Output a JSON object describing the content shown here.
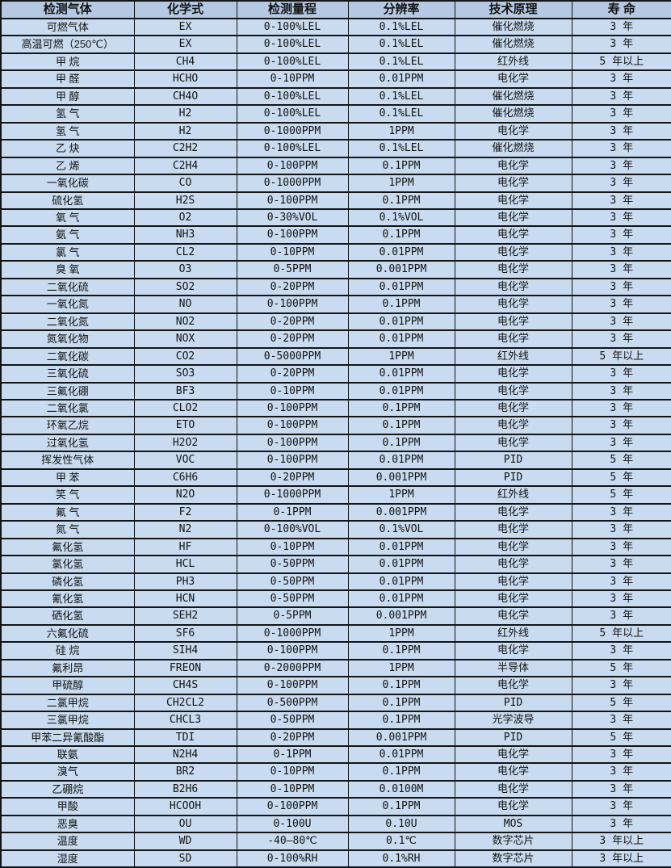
{
  "colors": {
    "header_bg": "#b4c9e3",
    "row_bg": "#c8dbf0",
    "border": "#141414",
    "text": "#131313"
  },
  "table": {
    "headers": [
      "检测气体",
      "化学式",
      "检测量程",
      "分辨率",
      "技术原理",
      "寿 命"
    ],
    "column_keys": [
      "gas",
      "formula",
      "range",
      "resolution",
      "principle",
      "lifespan"
    ],
    "rows": [
      [
        "可燃气体",
        "EX",
        "0-100%LEL",
        "0.1%LEL",
        "催化燃烧",
        "3 年"
      ],
      [
        "高温可燃（250℃）",
        "EX",
        "0-100%LEL",
        "0.1%LEL",
        "催化燃烧",
        "3 年"
      ],
      [
        "甲 烷",
        "CH4",
        "0-100%LEL",
        "0.1%LEL",
        "红外线",
        "5 年以上"
      ],
      [
        "甲 醛",
        "HCHO",
        "0-10PPM",
        "0.01PPM",
        "电化学",
        "3 年"
      ],
      [
        "甲 醇",
        "CH4O",
        "0-100%LEL",
        "0.1%LEL",
        "催化燃烧",
        "3 年"
      ],
      [
        "氢 气",
        "H2",
        "0-100%LEL",
        "0.1%LEL",
        "催化燃烧",
        "3 年"
      ],
      [
        "氢 气",
        "H2",
        "0-1000PPM",
        "1PPM",
        "电化学",
        "3 年"
      ],
      [
        "乙 炔",
        "C2H2",
        "0-100%LEL",
        "0.1%LEL",
        "催化燃烧",
        "3 年"
      ],
      [
        "乙 烯",
        "C2H4",
        "0-100PPM",
        "0.1PPM",
        "电化学",
        "3 年"
      ],
      [
        "一氧化碳",
        "CO",
        "0-1000PPM",
        "1PPM",
        "电化学",
        "3 年"
      ],
      [
        "硫化氢",
        "H2S",
        "0-100PPM",
        "0.1PPM",
        "电化学",
        "3 年"
      ],
      [
        "氧 气",
        "O2",
        "0-30%VOL",
        "0.1%VOL",
        "电化学",
        "3 年"
      ],
      [
        "氨 气",
        "NH3",
        "0-100PPM",
        "0.1PPM",
        "电化学",
        "3 年"
      ],
      [
        "氯 气",
        "CL2",
        "0-10PPM",
        "0.01PPM",
        "电化学",
        "3 年"
      ],
      [
        "臭 氧",
        "O3",
        "0-5PPM",
        "0.001PPM",
        "电化学",
        "3 年"
      ],
      [
        "二氧化硫",
        "SO2",
        "0-20PPM",
        "0.01PPM",
        "电化学",
        "3 年"
      ],
      [
        "一氧化氮",
        "NO",
        "0-100PPM",
        "0.1PPM",
        "电化学",
        "3 年"
      ],
      [
        "二氧化氮",
        "NO2",
        "0-20PPM",
        "0.01PPM",
        "电化学",
        "3 年"
      ],
      [
        "氮氧化物",
        "NOX",
        "0-20PPM",
        "0.01PPM",
        "电化学",
        "3 年"
      ],
      [
        "二氧化碳",
        "CO2",
        "0-5000PPM",
        "1PPM",
        "红外线",
        "5 年以上"
      ],
      [
        "三氧化硫",
        "SO3",
        "0-20PPM",
        "0.01PPM",
        "电化学",
        "3 年"
      ],
      [
        "三氟化硼",
        "BF3",
        "0-10PPM",
        "0.01PPM",
        "电化学",
        "3 年"
      ],
      [
        "二氧化氯",
        "CLO2",
        "0-100PPM",
        "0.1PPM",
        "电化学",
        "3 年"
      ],
      [
        "环氧乙烷",
        "ETO",
        "0-100PPM",
        "0.1PPM",
        "电化学",
        "3 年"
      ],
      [
        "过氧化氢",
        "H2O2",
        "0-100PPM",
        "0.1PPM",
        "电化学",
        "3 年"
      ],
      [
        "挥发性气体",
        "VOC",
        "0-100PPM",
        "0.01PPM",
        "PID",
        "5 年"
      ],
      [
        "甲 苯",
        "C6H6",
        "0-20PPM",
        "0.001PPM",
        "PID",
        "5 年"
      ],
      [
        "笑 气",
        "N2O",
        "0-1000PPM",
        "1PPM",
        "红外线",
        "5 年"
      ],
      [
        "氟 气",
        "F2",
        "0-1PPM",
        "0.001PPM",
        "电化学",
        "3 年"
      ],
      [
        "氮 气",
        "N2",
        "0-100%VOL",
        "0.1%VOL",
        "电化学",
        "3 年"
      ],
      [
        "氟化氢",
        "HF",
        "0-10PPM",
        "0.01PPM",
        "电化学",
        "3 年"
      ],
      [
        "氯化氢",
        "HCL",
        "0-50PPM",
        "0.01PPM",
        "电化学",
        "3 年"
      ],
      [
        "磷化氢",
        "PH3",
        "0-50PPM",
        "0.01PPM",
        "电化学",
        "3 年"
      ],
      [
        "氰化氢",
        "HCN",
        "0-50PPM",
        "0.01PPM",
        "电化学",
        "3 年"
      ],
      [
        "硒化氢",
        "SEH2",
        "0-5PPM",
        "0.001PPM",
        "电化学",
        "3 年"
      ],
      [
        "六氟化硫",
        "SF6",
        "0-1000PPM",
        "1PPM",
        "红外线",
        "5 年以上"
      ],
      [
        "硅 烷",
        "SIH4",
        "0-100PPM",
        "0.1PPM",
        "电化学",
        "3 年"
      ],
      [
        "氟利昂",
        "FREON",
        "0-2000PPM",
        "1PPM",
        "半导体",
        "5 年"
      ],
      [
        "甲硫醇",
        "CH4S",
        "0-100PPM",
        "0.1PPM",
        "电化学",
        "3 年"
      ],
      [
        "二氯甲烷",
        "CH2CL2",
        "0-500PPM",
        "0.1PPM",
        "PID",
        "5 年"
      ],
      [
        "三氯甲烷",
        "CHCL3",
        "0-50PPM",
        "0.1PPM",
        "光学波导",
        "3 年"
      ],
      [
        "甲苯二异氰酸酯",
        "TDI",
        "0-20PPM",
        "0.001PPM",
        "PID",
        "5 年"
      ],
      [
        "联氨",
        "N2H4",
        "0-1PPM",
        "0.01PPM",
        "电化学",
        "3 年"
      ],
      [
        "溴气",
        "BR2",
        "0-10PPM",
        "0.1PPM",
        "电化学",
        "3 年"
      ],
      [
        "乙硼烷",
        "B2H6",
        "0-10PPM",
        "0.0100M",
        "电化学",
        "3 年"
      ],
      [
        "甲酸",
        "HCOOH",
        "0-100PPM",
        "0.1PPM",
        "电化学",
        "3 年"
      ],
      [
        "恶臭",
        "OU",
        "0-100U",
        "0.10U",
        "MOS",
        "3 年"
      ],
      [
        "温度",
        "WD",
        "-40—80℃",
        "0.1℃",
        "数字芯片",
        "3 年以上"
      ],
      [
        "湿度",
        "SD",
        "0-100%RH",
        "0.1%RH",
        "数字芯片",
        "3 年以上"
      ]
    ]
  }
}
